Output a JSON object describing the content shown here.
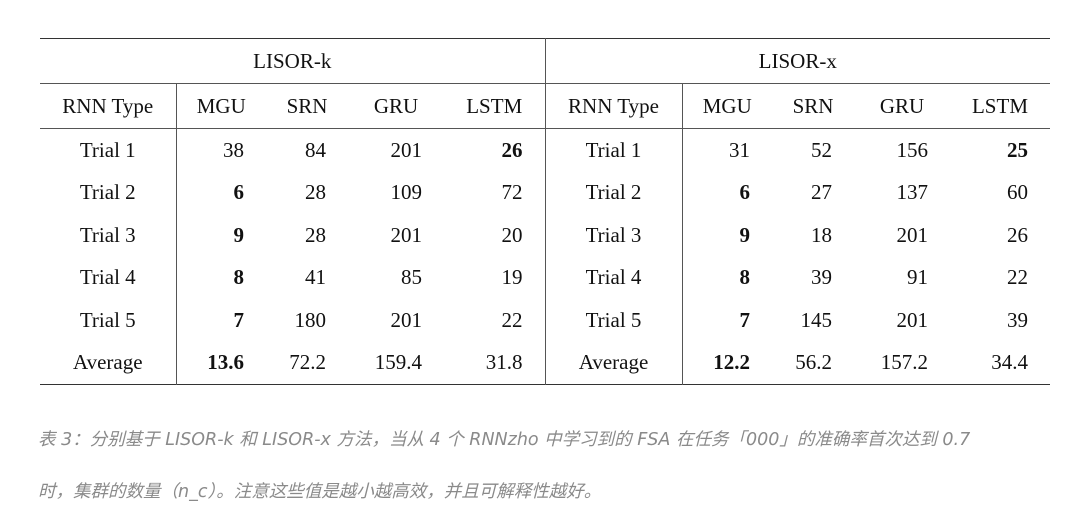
{
  "table": {
    "groups": [
      "LISOR-k",
      "LISOR-x"
    ],
    "columns": [
      "RNN Type",
      "MGU",
      "SRN",
      "GRU",
      "LSTM"
    ],
    "rows": [
      {
        "label": "Trial 1",
        "k": [
          {
            "v": "38",
            "b": false
          },
          {
            "v": "84",
            "b": false
          },
          {
            "v": "201",
            "b": false
          },
          {
            "v": "26",
            "b": true
          }
        ],
        "x": [
          {
            "v": "31",
            "b": false
          },
          {
            "v": "52",
            "b": false
          },
          {
            "v": "156",
            "b": false
          },
          {
            "v": "25",
            "b": true
          }
        ]
      },
      {
        "label": "Trial 2",
        "k": [
          {
            "v": "6",
            "b": true
          },
          {
            "v": "28",
            "b": false
          },
          {
            "v": "109",
            "b": false
          },
          {
            "v": "72",
            "b": false
          }
        ],
        "x": [
          {
            "v": "6",
            "b": true
          },
          {
            "v": "27",
            "b": false
          },
          {
            "v": "137",
            "b": false
          },
          {
            "v": "60",
            "b": false
          }
        ]
      },
      {
        "label": "Trial 3",
        "k": [
          {
            "v": "9",
            "b": true
          },
          {
            "v": "28",
            "b": false
          },
          {
            "v": "201",
            "b": false
          },
          {
            "v": "20",
            "b": false
          }
        ],
        "x": [
          {
            "v": "9",
            "b": true
          },
          {
            "v": "18",
            "b": false
          },
          {
            "v": "201",
            "b": false
          },
          {
            "v": "26",
            "b": false
          }
        ]
      },
      {
        "label": "Trial 4",
        "k": [
          {
            "v": "8",
            "b": true
          },
          {
            "v": "41",
            "b": false
          },
          {
            "v": "85",
            "b": false
          },
          {
            "v": "19",
            "b": false
          }
        ],
        "x": [
          {
            "v": "8",
            "b": true
          },
          {
            "v": "39",
            "b": false
          },
          {
            "v": "91",
            "b": false
          },
          {
            "v": "22",
            "b": false
          }
        ]
      },
      {
        "label": "Trial 5",
        "k": [
          {
            "v": "7",
            "b": true
          },
          {
            "v": "180",
            "b": false
          },
          {
            "v": "201",
            "b": false
          },
          {
            "v": "22",
            "b": false
          }
        ],
        "x": [
          {
            "v": "7",
            "b": true
          },
          {
            "v": "145",
            "b": false
          },
          {
            "v": "201",
            "b": false
          },
          {
            "v": "39",
            "b": false
          }
        ]
      },
      {
        "label": "Average",
        "k": [
          {
            "v": "13.6",
            "b": true
          },
          {
            "v": "72.2",
            "b": false
          },
          {
            "v": "159.4",
            "b": false
          },
          {
            "v": "31.8",
            "b": false
          }
        ],
        "x": [
          {
            "v": "12.2",
            "b": true
          },
          {
            "v": "56.2",
            "b": false
          },
          {
            "v": "157.2",
            "b": false
          },
          {
            "v": "34.4",
            "b": false
          }
        ]
      }
    ]
  },
  "caption": {
    "line1": "表 3：分别基于 LISOR-k 和 LISOR-x 方法，当从 4 个 RNNzho 中学习到的 FSA 在任务「000」的准确率首次达到 0.7",
    "line2": "时，集群的数量（n_c）。注意这些值是越小越高效，并且可解释性越好。"
  }
}
